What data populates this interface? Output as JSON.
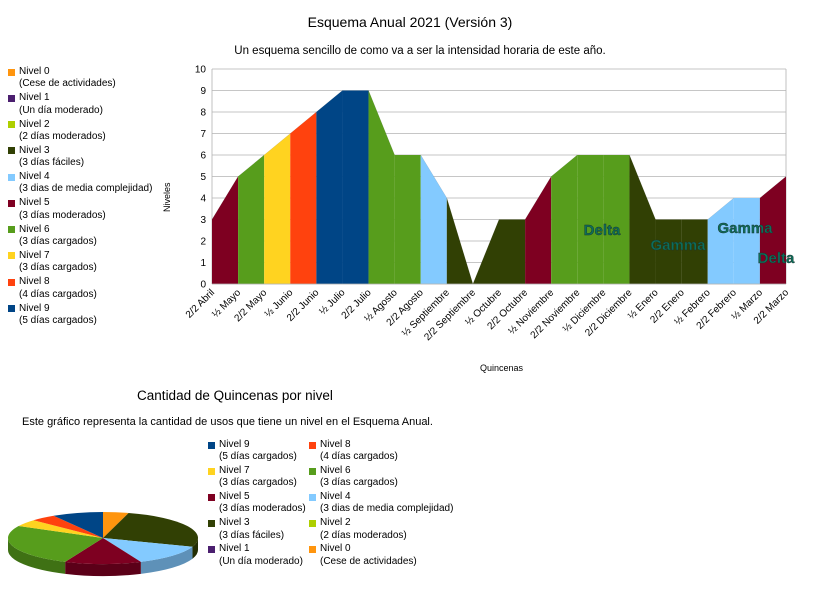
{
  "title": "Esquema Anual 2021 (Versión 3)",
  "subtitle": "Un esquema sencillo de como va a ser la intensidad horaria de este año.",
  "levels": [
    {
      "name": "Nivel 0",
      "desc": "(Cese de actividades)",
      "color": "#ff950e"
    },
    {
      "name": "Nivel 1",
      "desc": "(Un día moderado)",
      "color": "#4b1f6f"
    },
    {
      "name": "Nivel 2",
      "desc": "(2 días moderados)",
      "color": "#aecf00"
    },
    {
      "name": "Nivel 3",
      "desc": "(3 días fáciles)",
      "color": "#314004"
    },
    {
      "name": "Nivel 4",
      "desc": "(3 dias de media complejidad)",
      "color": "#83caff"
    },
    {
      "name": "Nivel 5",
      "desc": "(3 días moderados)",
      "color": "#7e0021"
    },
    {
      "name": "Nivel 6",
      "desc": "(3 días cargados)",
      "color": "#579d1c"
    },
    {
      "name": "Nivel 7",
      "desc": "(3 días cargados)",
      "color": "#ffd320"
    },
    {
      "name": "Nivel 8",
      "desc": "(4 días cargados)",
      "color": "#ff420e"
    },
    {
      "name": "Nivel 9",
      "desc": "(5 días cargados)",
      "color": "#004586"
    }
  ],
  "pie_title": "Cantidad de Quincenas por nivel",
  "pie_desc": "Este gráfico representa la cantidad de usos que tiene un nivel en el Esquema Anual.",
  "annotations": [
    "Delta",
    "Gamma",
    "Gamma",
    "Delta"
  ],
  "chart_data": [
    {
      "type": "area",
      "title": "Esquema Anual 2021 (Versión 3)",
      "subtitle": "Un esquema sencillo de como va a ser la intensidad horaria de este año.",
      "xlabel": "Quincenas",
      "ylabel": "Niveles",
      "ylim": [
        0,
        10
      ],
      "yticks": [
        0,
        1,
        2,
        3,
        4,
        5,
        6,
        7,
        8,
        9,
        10
      ],
      "grid": true,
      "legend": "left",
      "categories": [
        "2/2 Abril",
        "½ Mayo",
        "2/2 Mayo",
        "½ Junio",
        "2/2 Junio",
        "½ Julio",
        "2/2 Julio",
        "½ Agosto",
        "2/2 Agosto",
        "½ Septiembre",
        "2/2 Septiembre",
        "½ Octubre",
        "2/2 Octubre",
        "½ Noviembre",
        "2/2 Noviembre",
        "½ Diciembre",
        "2/2 Diciembre",
        "½ Enero",
        "2/2 Enero",
        "½ Febrero",
        "2/2 Febrero",
        "½ Marzo",
        "2/2 Marzo"
      ],
      "values": [
        3,
        5,
        6,
        7,
        8,
        9,
        9,
        6,
        6,
        4,
        0,
        3,
        3,
        5,
        6,
        6,
        6,
        3,
        3,
        3,
        4,
        4,
        5
      ],
      "segment_levels": [
        5,
        6,
        7,
        8,
        9,
        9,
        6,
        6,
        4,
        3,
        3,
        3,
        5,
        6,
        6,
        6,
        3,
        3,
        3,
        4,
        4,
        5
      ]
    },
    {
      "type": "pie",
      "title": "Cantidad de Quincenas por nivel",
      "legend": "right",
      "series": [
        {
          "name": "Nivel 0",
          "value": 1
        },
        {
          "name": "Nivel 3",
          "value": 6
        },
        {
          "name": "Nivel 4",
          "value": 3
        },
        {
          "name": "Nivel 5",
          "value": 3
        },
        {
          "name": "Nivel 6",
          "value": 6
        },
        {
          "name": "Nivel 7",
          "value": 1
        },
        {
          "name": "Nivel 8",
          "value": 1
        },
        {
          "name": "Nivel 9",
          "value": 2
        }
      ]
    }
  ]
}
